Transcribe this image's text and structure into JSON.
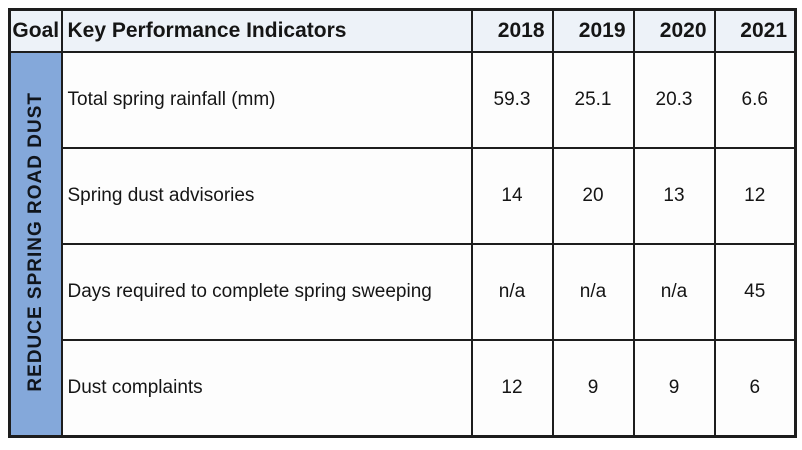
{
  "colors": {
    "goal_bg": "#84a8da",
    "header_bg": "#edf2f8",
    "border": "#1d1d1d",
    "cell_bg": "#fdfdfd",
    "text": "#151515"
  },
  "table": {
    "goal_header": "Goal",
    "kpi_header": "Key Performance Indicators",
    "goal_label": "REDUCE SPRING ROAD DUST",
    "year_headers": [
      "2018",
      "2019",
      "2020",
      "2021"
    ],
    "rows": [
      {
        "label": "Total spring rainfall (mm)",
        "values": [
          "59.3",
          "25.1",
          "20.3",
          "6.6"
        ]
      },
      {
        "label": "Spring dust advisories",
        "values": [
          "14",
          "20",
          "13",
          "12"
        ]
      },
      {
        "label": "Days required to complete spring sweeping",
        "values": [
          "n/a",
          "n/a",
          "n/a",
          "45"
        ]
      },
      {
        "label": "Dust complaints",
        "values": [
          "12",
          "9",
          "9",
          "6"
        ]
      }
    ]
  },
  "chart_data": {
    "type": "table",
    "title": "Reduce Spring Road Dust — Key Performance Indicators",
    "columns": [
      "Key Performance Indicators",
      "2018",
      "2019",
      "2020",
      "2021"
    ],
    "rows": [
      [
        "Total spring rainfall (mm)",
        "59.3",
        "25.1",
        "20.3",
        "6.6"
      ],
      [
        "Spring dust advisories",
        "14",
        "20",
        "13",
        "12"
      ],
      [
        "Days required to complete spring sweeping",
        "n/a",
        "n/a",
        "n/a",
        "45"
      ],
      [
        "Dust complaints",
        "12",
        "9",
        "9",
        "6"
      ]
    ]
  }
}
